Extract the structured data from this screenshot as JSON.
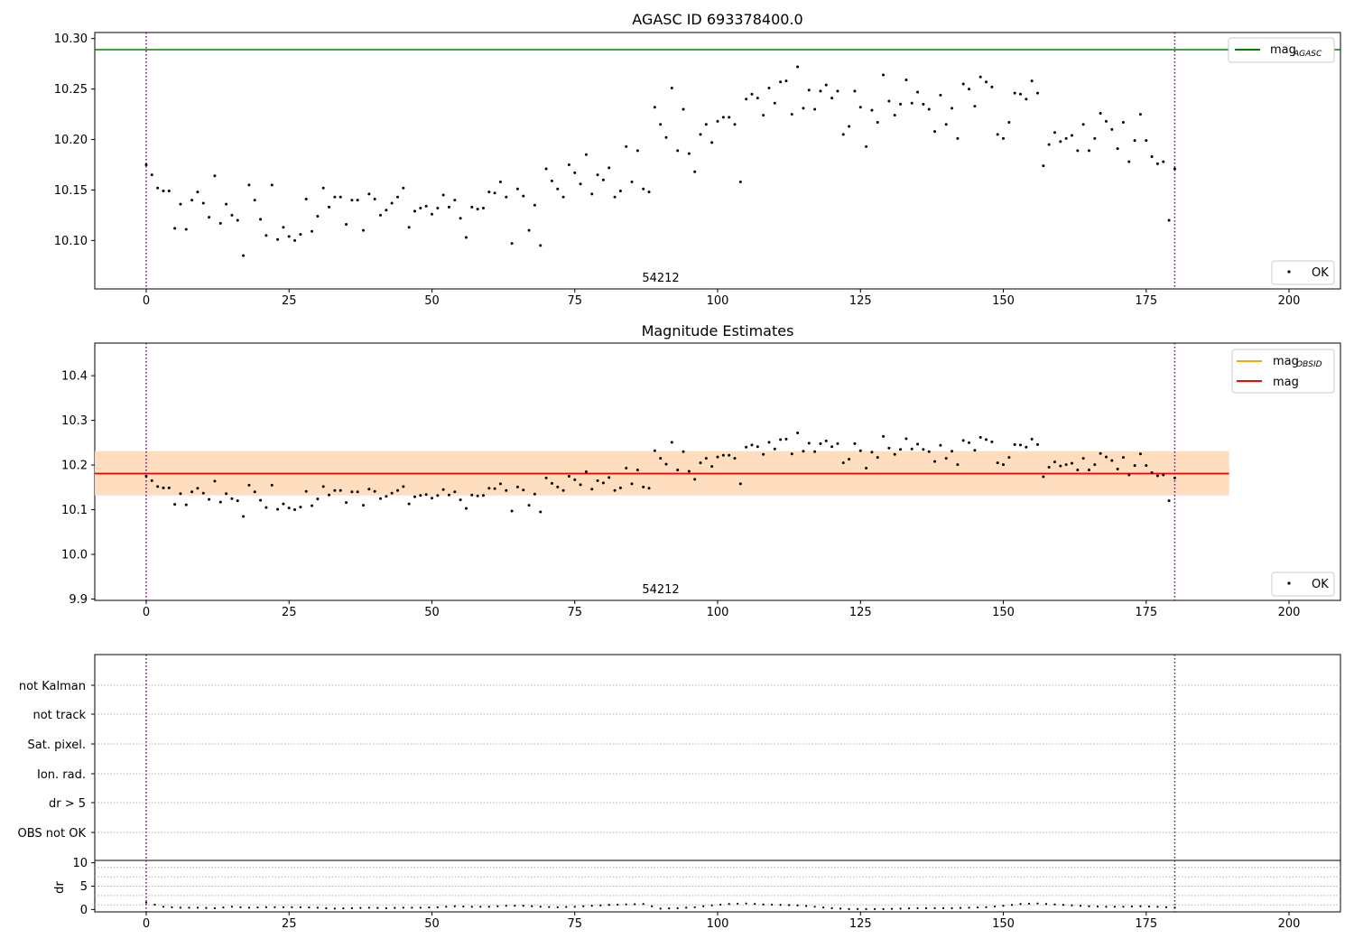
{
  "figure": {
    "x_ticks": [
      "0",
      "25",
      "50",
      "75",
      "100",
      "125",
      "150",
      "175",
      "200"
    ],
    "x_range": [
      -9,
      209
    ],
    "vlines": [
      0,
      180
    ],
    "colors": {
      "agasc": "#008000",
      "obsid": "#ffa500",
      "mag": "#ff0000",
      "vline": "#800080",
      "points": "#000000",
      "band_obsid": "#ffe0b0",
      "band_mag": "#ffd4da"
    }
  },
  "chart_data": [
    {
      "type": "scatter",
      "title": "AGASC ID 693378400.0",
      "annotation": "54212",
      "ylim": [
        10.052,
        10.306
      ],
      "y_ticks": [
        "10.10",
        "10.15",
        "10.20",
        "10.25",
        "10.30"
      ],
      "y_tick_values": [
        10.1,
        10.15,
        10.2,
        10.25,
        10.3
      ],
      "hline": {
        "name": "mag_AGASC",
        "legend_main": "mag",
        "legend_sub": "AGASC",
        "value": 10.289
      },
      "legend_top": "top-right",
      "legend_bottom": {
        "label": "OK",
        "placement": "bottom-right"
      },
      "series": [
        {
          "name": "OK",
          "x": [
            0,
            1,
            2,
            3,
            4,
            5,
            6,
            7,
            8,
            9,
            10,
            11,
            12,
            13,
            14,
            15,
            16,
            17,
            18,
            19,
            20,
            21,
            22,
            23,
            24,
            25,
            26,
            27,
            28,
            29,
            30,
            31,
            32,
            33,
            34,
            35,
            36,
            37,
            38,
            39,
            40,
            41,
            42,
            43,
            44,
            45,
            46,
            47,
            48,
            49,
            50,
            51,
            52,
            53,
            54,
            55,
            56,
            57,
            58,
            59,
            60,
            61,
            62,
            63,
            64,
            65,
            66,
            67,
            68,
            69,
            70,
            71,
            72,
            73,
            74,
            75,
            76,
            77,
            78,
            79,
            80,
            81,
            82,
            83,
            84,
            85,
            86,
            87,
            88,
            89,
            90,
            91,
            92,
            93,
            94,
            95,
            96,
            97,
            98,
            99,
            100,
            101,
            102,
            103,
            104,
            105,
            106,
            107,
            108,
            109,
            110,
            111,
            112,
            113,
            114,
            115,
            116,
            117,
            118,
            119,
            120,
            121,
            122,
            123,
            124,
            125,
            126,
            127,
            128,
            129,
            130,
            131,
            132,
            133,
            134,
            135,
            136,
            137,
            138,
            139,
            140,
            141,
            142,
            143,
            144,
            145,
            146,
            147,
            148,
            149,
            150,
            151,
            152,
            153,
            154,
            155,
            156,
            157,
            158,
            159,
            160,
            161,
            162,
            163,
            164,
            165,
            166,
            167,
            168,
            169,
            170,
            171,
            172,
            173,
            174,
            175,
            176,
            177,
            178,
            179,
            180
          ],
          "values": [
            10.175,
            10.165,
            10.152,
            10.149,
            10.149,
            10.112,
            10.136,
            10.111,
            10.14,
            10.148,
            10.137,
            10.123,
            10.164,
            10.117,
            10.136,
            10.125,
            10.12,
            10.085,
            10.155,
            10.14,
            10.121,
            10.105,
            10.155,
            10.101,
            10.113,
            10.104,
            10.1,
            10.106,
            10.141,
            10.109,
            10.124,
            10.152,
            10.133,
            10.143,
            10.143,
            10.116,
            10.14,
            10.14,
            10.11,
            10.146,
            10.141,
            10.125,
            10.13,
            10.137,
            10.143,
            10.152,
            10.113,
            10.129,
            10.132,
            10.134,
            10.126,
            10.132,
            10.145,
            10.133,
            10.14,
            10.122,
            10.103,
            10.133,
            10.131,
            10.132,
            10.148,
            10.147,
            10.158,
            10.143,
            10.097,
            10.151,
            10.144,
            10.11,
            10.135,
            10.095,
            10.171,
            10.159,
            10.151,
            10.143,
            10.175,
            10.167,
            10.156,
            10.185,
            10.146,
            10.165,
            10.16,
            10.172,
            10.143,
            10.149,
            10.193,
            10.158,
            10.189,
            10.151,
            10.148,
            10.232,
            10.215,
            10.202,
            10.251,
            10.189,
            10.23,
            10.186,
            10.168,
            10.205,
            10.215,
            10.197,
            10.218,
            10.222,
            10.222,
            10.215,
            10.158,
            10.24,
            10.245,
            10.241,
            10.224,
            10.251,
            10.236,
            10.257,
            10.258,
            10.225,
            10.272,
            10.231,
            10.249,
            10.23,
            10.248,
            10.254,
            10.241,
            10.248,
            10.205,
            10.213,
            10.248,
            10.232,
            10.193,
            10.229,
            10.217,
            10.264,
            10.238,
            10.224,
            10.235,
            10.259,
            10.236,
            10.247,
            10.235,
            10.23,
            10.208,
            10.244,
            10.215,
            10.231,
            10.201,
            10.255,
            10.25,
            10.233,
            10.262,
            10.257,
            10.252,
            10.205,
            10.201,
            10.217,
            10.246,
            10.245,
            10.24,
            10.258,
            10.246,
            10.174,
            10.195,
            10.207,
            10.198,
            10.201,
            10.204,
            10.189,
            10.215,
            10.189,
            10.201,
            10.226,
            10.218,
            10.21,
            10.191,
            10.217,
            10.178,
            10.199,
            10.225,
            10.199,
            10.183,
            10.176,
            10.178,
            10.12,
            10.171
          ]
        }
      ]
    },
    {
      "type": "scatter",
      "title": "Magnitude Estimates",
      "annotation": "54212",
      "ylim": [
        9.897,
        10.473
      ],
      "y_ticks": [
        "9.9",
        "10.0",
        "10.1",
        "10.2",
        "10.3",
        "10.4"
      ],
      "y_tick_values": [
        9.9,
        10.0,
        10.1,
        10.2,
        10.3,
        10.4
      ],
      "legend": [
        {
          "main": "mag",
          "sub": "OBSID",
          "color": "#ffa500"
        },
        {
          "main": "mag",
          "sub": "",
          "color": "#ff0000"
        }
      ],
      "mag_obsid": {
        "value": 10.181,
        "band": [
          10.133,
          10.231
        ],
        "x_range": [
          -9,
          189.5
        ]
      },
      "mag": {
        "value": 10.181,
        "band": [
          10.132,
          10.231
        ],
        "x_range": [
          -9,
          189.5
        ]
      },
      "legend_bottom": {
        "label": "OK",
        "placement": "bottom-right"
      },
      "series_ref": "same OK points as first panel"
    },
    {
      "type": "scatter",
      "title": "",
      "flag_labels": [
        "not Kalman",
        "not track",
        "Sat. pixel.",
        "Ion. rad.",
        "dr > 5",
        "OBS not OK"
      ],
      "flag_points": []
    },
    {
      "type": "line",
      "ylabel": "dr",
      "ylim": [
        -0.5,
        10.5
      ],
      "y_ticks": [
        "10",
        "5",
        "0"
      ],
      "y_tick_values": [
        10,
        5,
        0
      ],
      "gridlines": [
        1,
        3,
        5,
        7,
        9
      ],
      "series": [
        {
          "name": "dr",
          "x": [
            0,
            3,
            6,
            9,
            12,
            15,
            18,
            21,
            24,
            27,
            30,
            33,
            36,
            39,
            42,
            45,
            48,
            51,
            54,
            57,
            60,
            63,
            66,
            69,
            72,
            75,
            78,
            81,
            84,
            87,
            90,
            93,
            96,
            99,
            102,
            105,
            108,
            111,
            114,
            117,
            120,
            123,
            126,
            129,
            132,
            135,
            138,
            141,
            144,
            147,
            150,
            153,
            156,
            159,
            162,
            165,
            168,
            171,
            174,
            177,
            180
          ],
          "values": [
            1.5,
            0.6,
            0.4,
            0.4,
            0.3,
            0.6,
            0.4,
            0.5,
            0.5,
            0.5,
            0.4,
            0.2,
            0.3,
            0.4,
            0.3,
            0.4,
            0.4,
            0.5,
            0.7,
            0.6,
            0.6,
            0.8,
            0.8,
            0.6,
            0.5,
            0.6,
            0.8,
            1.0,
            1.1,
            1.2,
            0.2,
            0.3,
            0.5,
            0.9,
            1.2,
            1.3,
            1.1,
            1.0,
            0.9,
            0.6,
            0.3,
            0.1,
            0.1,
            0.1,
            0.2,
            0.3,
            0.3,
            0.3,
            0.4,
            0.5,
            0.8,
            1.2,
            1.3,
            1.1,
            0.9,
            0.7,
            0.6,
            0.6,
            0.7,
            0.6,
            0.4
          ]
        }
      ]
    }
  ]
}
